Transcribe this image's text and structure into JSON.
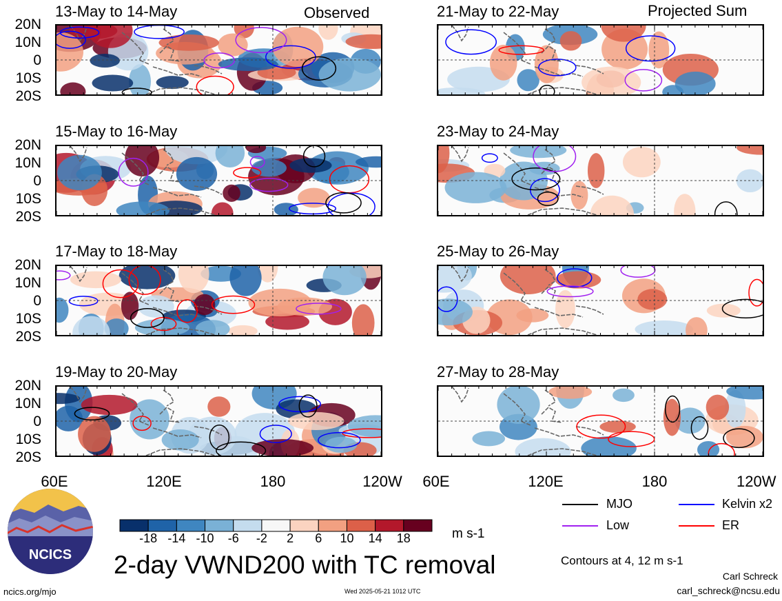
{
  "main_title": "2-day VWND200 with TC removal",
  "units": "m s-1",
  "observed_label": "Observed",
  "projected_label": "Projected Sum",
  "lat_labels": [
    "20N",
    "10N",
    "0",
    "10S",
    "20S"
  ],
  "lon_labels": [
    "60E",
    "120E",
    "180",
    "120W"
  ],
  "colorbar": {
    "ticks": [
      "-18",
      "-14",
      "-10",
      "-6",
      "-2",
      "2",
      "6",
      "10",
      "14",
      "18"
    ],
    "colors": [
      "#08306b",
      "#1f63a8",
      "#3f86c0",
      "#7ab1d6",
      "#c4dcee",
      "#f7f7f7",
      "#fbd3c0",
      "#f2a081",
      "#dc6049",
      "#b3182b",
      "#67001f"
    ]
  },
  "legend": [
    {
      "label": "MJO",
      "color": "#000000"
    },
    {
      "label": "Kelvin x2",
      "color": "#0000ff"
    },
    {
      "label": "Low",
      "color": "#a020f0"
    },
    {
      "label": "ER",
      "color": "#ff0000"
    }
  ],
  "contour_note": "Contours at 4, 12 m s-1",
  "credit_name": "Carl Schreck",
  "credit_email": "carl_schreck@ncsu.edu",
  "site": "ncics.org/mjo",
  "timestamp": "Wed 2025-05-21 1012 UTC",
  "logo_text": "NCICS",
  "panels_left": [
    {
      "title": "13-May to 14-May"
    },
    {
      "title": "15-May to 16-May"
    },
    {
      "title": "17-May to 18-May"
    },
    {
      "title": "19-May to 20-May"
    }
  ],
  "panels_right": [
    {
      "title": "21-May to 22-May"
    },
    {
      "title": "23-May to 24-May"
    },
    {
      "title": "25-May to 26-May"
    },
    {
      "title": "27-May to 28-May"
    }
  ],
  "chart_data": {
    "type": "heatmap",
    "variable": "2-day 200 hPa meridional wind anomaly, TC removed",
    "units": "m s-1",
    "xlim": [
      "60E",
      "120W"
    ],
    "ylim": [
      "20S",
      "20N"
    ],
    "contour_levels": [
      4,
      12
    ],
    "legend_position": "bottom-right"
  }
}
